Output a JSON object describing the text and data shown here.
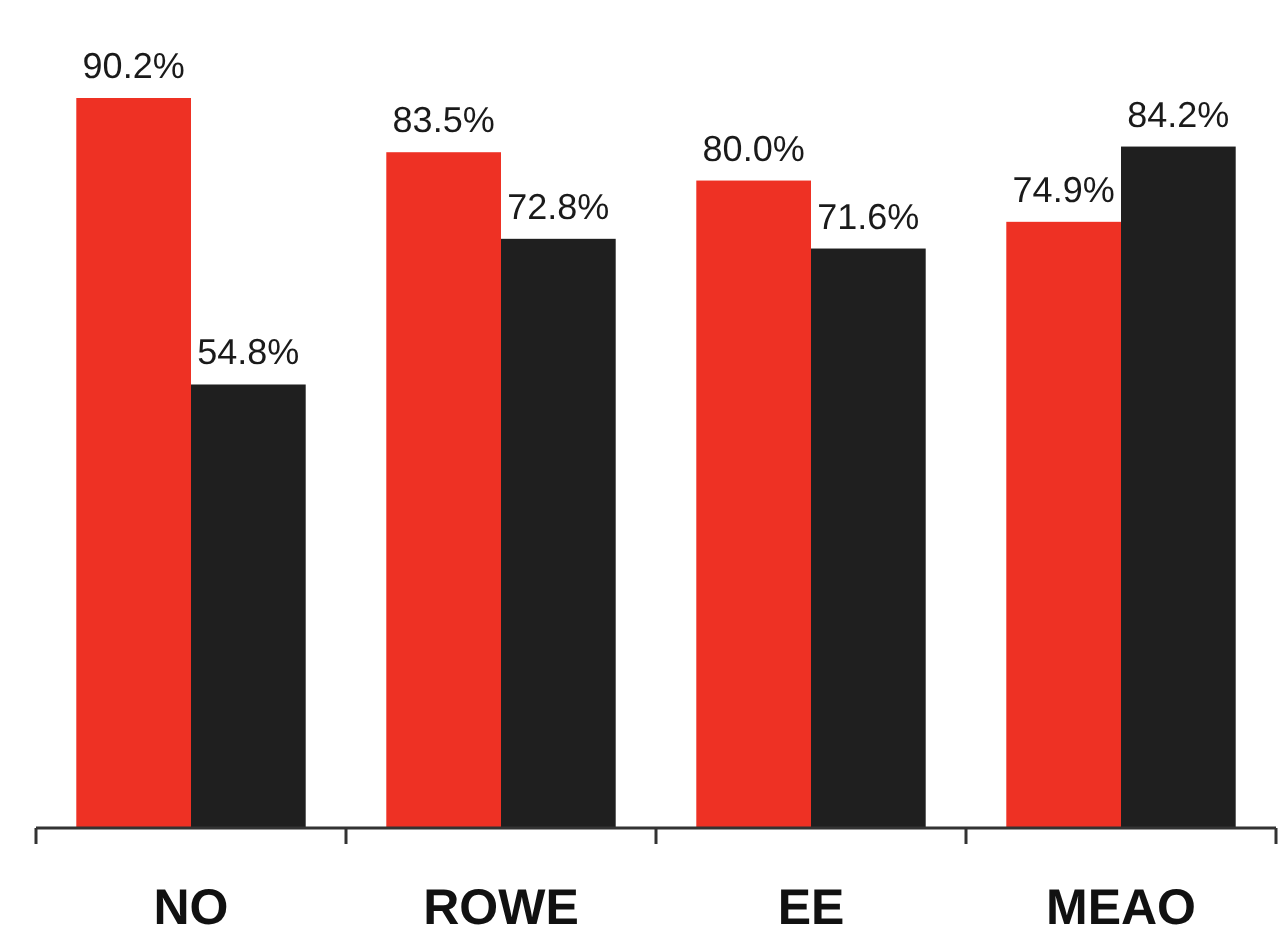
{
  "chart_data": {
    "type": "bar",
    "categories": [
      "NO",
      "ROWE",
      "EE",
      "MEAO"
    ],
    "series": [
      {
        "color": "#ee3124",
        "values": [
          90.2,
          83.5,
          80.0,
          74.9
        ],
        "value_labels": [
          "90.2%",
          "83.5%",
          "80.0%",
          "74.9%"
        ]
      },
      {
        "color": "#1f1f1f",
        "values": [
          54.8,
          72.8,
          71.6,
          84.2
        ],
        "value_labels": [
          "54.8%",
          "72.8%",
          "71.6%",
          "84.2%"
        ]
      }
    ]
  }
}
